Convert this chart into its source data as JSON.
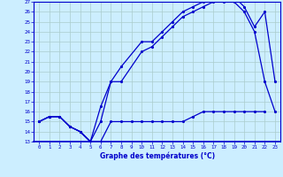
{
  "title": "Graphe des températures (°C)",
  "bg_color": "#cceeff",
  "grid_color": "#aacccc",
  "line_color": "#0000cc",
  "xlim": [
    -0.5,
    23.5
  ],
  "ylim": [
    13,
    27
  ],
  "xticks": [
    0,
    1,
    2,
    3,
    4,
    5,
    6,
    7,
    8,
    9,
    10,
    11,
    12,
    13,
    14,
    15,
    16,
    17,
    18,
    19,
    20,
    21,
    22,
    23
  ],
  "yticks": [
    13,
    14,
    15,
    16,
    17,
    18,
    19,
    20,
    21,
    22,
    23,
    24,
    25,
    26,
    27
  ],
  "line_bottom_x": [
    0,
    1,
    2,
    3,
    4,
    5,
    6,
    7,
    8,
    9,
    10,
    11,
    12,
    13,
    14,
    15,
    16,
    17,
    18,
    19,
    20,
    21,
    22
  ],
  "line_bottom_y": [
    15,
    15.5,
    15.5,
    14.5,
    14,
    13,
    13,
    15,
    15,
    15,
    15,
    15,
    15,
    15,
    15,
    15.5,
    16,
    16,
    16,
    16,
    16,
    16,
    16
  ],
  "line_mid_x": [
    0,
    1,
    2,
    3,
    4,
    5,
    6,
    7,
    8,
    10,
    11,
    12,
    13,
    14,
    15,
    16,
    17,
    18,
    19,
    20,
    21,
    22,
    23
  ],
  "line_mid_y": [
    15,
    15.5,
    15.5,
    14.5,
    14,
    13,
    15,
    19,
    19,
    22,
    22.5,
    23.5,
    24.5,
    25.5,
    26,
    26.5,
    27,
    27,
    27,
    26,
    24,
    19,
    16
  ],
  "line_top_x": [
    0,
    1,
    2,
    3,
    4,
    5,
    6,
    7,
    8,
    10,
    11,
    12,
    13,
    14,
    15,
    16,
    17,
    18,
    19,
    20,
    21,
    22,
    23
  ],
  "line_top_y": [
    15,
    15.5,
    15.5,
    14.5,
    14,
    13,
    16.5,
    19,
    20.5,
    23,
    23,
    24,
    25,
    26,
    26.5,
    27,
    27.5,
    27.5,
    27.5,
    26.5,
    24.5,
    26,
    19
  ]
}
